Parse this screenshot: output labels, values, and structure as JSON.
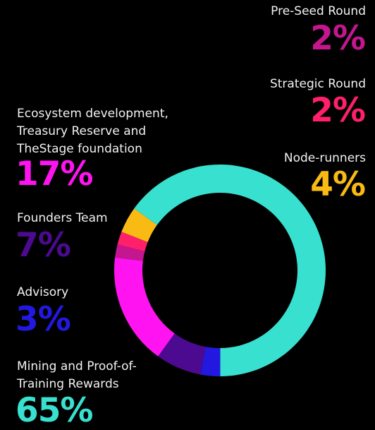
{
  "chart_data": {
    "type": "pie",
    "title": "",
    "series": [
      {
        "name": "Pre-Seed Round",
        "value": 2,
        "color": "#c4168f"
      },
      {
        "name": "Strategic Round",
        "value": 2,
        "color": "#ff1f6b"
      },
      {
        "name": "Node-runners",
        "value": 4,
        "color": "#f9bb13"
      },
      {
        "name": "Mining and Proof-of-\nTraining Rewards",
        "value": 65,
        "color": "#38e0cf"
      },
      {
        "name": "Advisory",
        "value": 3,
        "color": "#2318e0"
      },
      {
        "name": "Founders Team",
        "value": 7,
        "color": "#4b0a8f"
      },
      {
        "name": "Ecosystem development,\nTreasury Reserve and\nTheStage foundation",
        "value": 17,
        "color": "#ff14f1"
      }
    ],
    "labels": {
      "pre_seed": {
        "name": "Pre-Seed Round",
        "pct": "2%"
      },
      "strategic": {
        "name": "Strategic Round",
        "pct": "2%"
      },
      "node": {
        "name": "Node-runners",
        "pct": "4%"
      },
      "ecosystem": {
        "name": "Ecosystem development,\nTreasury Reserve and\nTheStage foundation",
        "pct": "17%"
      },
      "founders": {
        "name": "Founders Team",
        "pct": "7%"
      },
      "advisory": {
        "name": "Advisory",
        "pct": "3%"
      },
      "mining": {
        "name": "Mining and Proof-of-\nTraining Rewards",
        "pct": "65%"
      }
    },
    "legend": "inline-labels"
  }
}
